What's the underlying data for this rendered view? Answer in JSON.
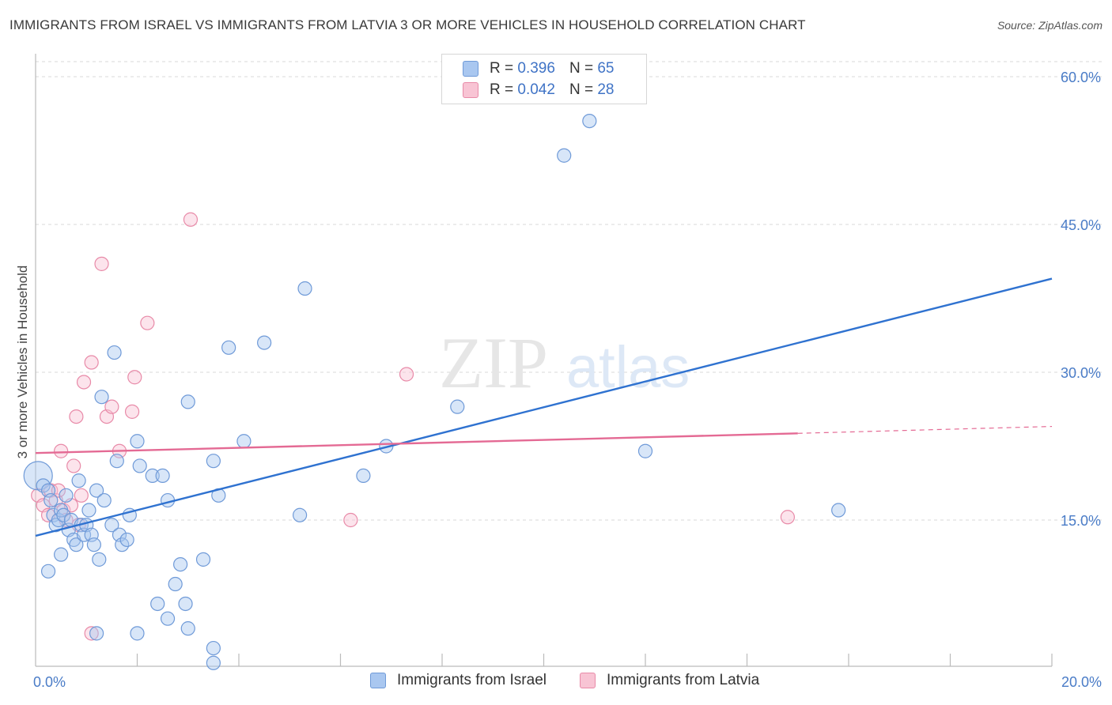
{
  "title": "IMMIGRANTS FROM ISRAEL VS IMMIGRANTS FROM LATVIA 3 OR MORE VEHICLES IN HOUSEHOLD CORRELATION CHART",
  "source": "Source: ZipAtlas.com",
  "watermark": {
    "zip": "ZIP",
    "atlas": "atlas"
  },
  "legend": {
    "rows": [
      {
        "r_label": "R =",
        "r_value": "0.396",
        "n_label": "N =",
        "n_value": "65"
      },
      {
        "r_label": "R =",
        "r_value": "0.042",
        "n_label": "N =",
        "n_value": "28"
      }
    ]
  },
  "bottom_legend": [
    "Immigrants from Israel",
    "Immigrants from Latvia"
  ],
  "colors": {
    "israel_fill": "#a9c7f0",
    "israel_stroke": "#6f9ad8",
    "israel_line": "#2f72d0",
    "latvia_fill": "#f8c4d4",
    "latvia_stroke": "#e88aa8",
    "latvia_line": "#e46a94",
    "tick_text": "#4a7cc7",
    "grid": "#d9d9d9"
  },
  "chart_data": {
    "type": "scatter",
    "title": "IMMIGRANTS FROM ISRAEL VS IMMIGRANTS FROM LATVIA 3 OR MORE VEHICLES IN HOUSEHOLD CORRELATION CHART",
    "xlabel": "",
    "ylabel": "3 or more Vehicles in Household",
    "xlim": [
      0,
      20
    ],
    "ylim": [
      0,
      60
    ],
    "x_tick_labels": [
      "0.0%",
      "20.0%"
    ],
    "y_ticks": [
      15,
      30,
      45,
      60
    ],
    "y_tick_labels": [
      "15.0%",
      "30.0%",
      "45.0%",
      "60.0%"
    ],
    "grid": true,
    "legend_position": "top-center",
    "series": [
      {
        "name": "Immigrants from Israel",
        "r": 0.396,
        "n": 65,
        "trend": {
          "x": [
            0,
            20
          ],
          "y": [
            13.4,
            39.5
          ]
        },
        "points": [
          [
            0.05,
            19.5
          ],
          [
            0.15,
            18.5
          ],
          [
            0.25,
            18.0
          ],
          [
            0.3,
            17.0
          ],
          [
            0.35,
            15.5
          ],
          [
            0.4,
            14.5
          ],
          [
            0.45,
            15.0
          ],
          [
            0.5,
            16.0
          ],
          [
            0.55,
            15.5
          ],
          [
            0.6,
            17.5
          ],
          [
            0.25,
            9.8
          ],
          [
            0.5,
            11.5
          ],
          [
            0.65,
            14.0
          ],
          [
            0.7,
            15.0
          ],
          [
            0.75,
            13.0
          ],
          [
            0.8,
            12.5
          ],
          [
            0.85,
            19.0
          ],
          [
            0.9,
            14.5
          ],
          [
            0.95,
            13.5
          ],
          [
            1.0,
            14.5
          ],
          [
            1.05,
            16.0
          ],
          [
            1.1,
            13.5
          ],
          [
            1.15,
            12.5
          ],
          [
            1.2,
            18.0
          ],
          [
            1.25,
            11.0
          ],
          [
            1.35,
            17.0
          ],
          [
            1.5,
            14.5
          ],
          [
            1.6,
            21.0
          ],
          [
            1.65,
            13.5
          ],
          [
            1.7,
            12.5
          ],
          [
            1.8,
            13.0
          ],
          [
            1.85,
            15.5
          ],
          [
            2.0,
            23.0
          ],
          [
            2.05,
            20.5
          ],
          [
            2.3,
            19.5
          ],
          [
            2.4,
            6.5
          ],
          [
            2.5,
            19.5
          ],
          [
            2.6,
            17.0
          ],
          [
            2.75,
            8.5
          ],
          [
            2.85,
            10.5
          ],
          [
            2.95,
            6.5
          ],
          [
            3.0,
            4.0
          ],
          [
            3.3,
            11.0
          ],
          [
            3.5,
            2.0
          ],
          [
            3.6,
            17.5
          ],
          [
            3.8,
            32.5
          ],
          [
            3.5,
            21.0
          ],
          [
            4.1,
            23.0
          ],
          [
            4.5,
            33.0
          ],
          [
            3.0,
            27.0
          ],
          [
            1.55,
            32.0
          ],
          [
            5.3,
            38.5
          ],
          [
            5.2,
            15.5
          ],
          [
            6.45,
            19.5
          ],
          [
            6.9,
            22.5
          ],
          [
            8.3,
            26.5
          ],
          [
            10.4,
            52.0
          ],
          [
            10.9,
            55.5
          ],
          [
            12.0,
            22.0
          ],
          [
            15.8,
            16.0
          ],
          [
            1.3,
            27.5
          ],
          [
            2.0,
            3.5
          ],
          [
            1.2,
            3.5
          ],
          [
            3.5,
            0.5
          ],
          [
            2.6,
            5.0
          ]
        ]
      },
      {
        "name": "Immigrants from Latvia",
        "r": 0.042,
        "n": 28,
        "trend": {
          "x": [
            0,
            15.0
          ],
          "y": [
            21.8,
            23.8
          ]
        },
        "trend_dashed": {
          "x": [
            15.0,
            20
          ],
          "y": [
            23.8,
            24.5
          ]
        },
        "points": [
          [
            0.05,
            17.5
          ],
          [
            0.15,
            16.5
          ],
          [
            0.25,
            15.5
          ],
          [
            0.3,
            18.0
          ],
          [
            0.4,
            17.0
          ],
          [
            0.45,
            18.0
          ],
          [
            0.5,
            22.0
          ],
          [
            0.55,
            16.0
          ],
          [
            0.6,
            15.0
          ],
          [
            0.7,
            16.5
          ],
          [
            0.75,
            20.5
          ],
          [
            0.8,
            25.5
          ],
          [
            0.85,
            14.5
          ],
          [
            0.9,
            17.5
          ],
          [
            0.95,
            29.0
          ],
          [
            1.1,
            31.0
          ],
          [
            1.4,
            25.5
          ],
          [
            1.5,
            26.5
          ],
          [
            1.65,
            22.0
          ],
          [
            1.9,
            26.0
          ],
          [
            1.95,
            29.5
          ],
          [
            2.2,
            35.0
          ],
          [
            1.3,
            41.0
          ],
          [
            3.05,
            45.5
          ],
          [
            6.2,
            15.0
          ],
          [
            7.3,
            29.8
          ],
          [
            14.8,
            15.3
          ],
          [
            1.1,
            3.5
          ]
        ]
      }
    ]
  }
}
